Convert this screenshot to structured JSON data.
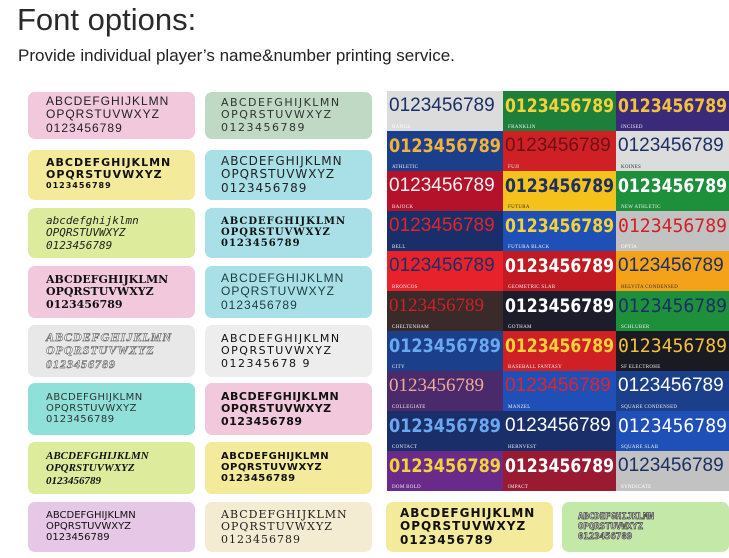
{
  "header": {
    "title": "Font options:",
    "subtitle": "Provide individual player’s name&number printing service."
  },
  "swatches": [
    {
      "bg": "#f2c8dc",
      "color": "#222",
      "lines": [
        "ABCDEFGHIJKLMN",
        "OPQRSTUVWXYZ",
        "0123456789"
      ],
      "font": "\"Liberation Sans\", sans-serif",
      "size": 12,
      "weight": "normal",
      "style": "normal",
      "tracking": 1,
      "stroke": ""
    },
    {
      "bg": "#bfd9c4",
      "color": "#333",
      "lines": [
        "ABCDEFGHIJKLMN",
        "OPQRSTUVWXYZ",
        "0123456789"
      ],
      "font": "\"DejaVu Sans\", sans-serif",
      "size": 11,
      "weight": "normal",
      "style": "normal",
      "tracking": 1.5,
      "stroke": ""
    },
    {
      "bg": "#f4ea9c",
      "color": "#111",
      "lines": [
        "ABCDEFGHIJKLMN",
        "OPQRSTUVWXYZ",
        "0123456789"
      ],
      "font": "\"DejaVu Sans\", sans-serif",
      "size": 11,
      "weight": "bold",
      "style": "normal",
      "tracking": 1,
      "stroke": "",
      "small_last": true
    },
    {
      "bg": "#a9e0e8",
      "color": "#222",
      "lines": [
        "ABCDEFGHIJKLMN",
        "OPQRSTUVWXYZ",
        "0123456789"
      ],
      "font": "\"DejaVu Sans\", sans-serif",
      "size": 12,
      "weight": "normal",
      "style": "normal",
      "tracking": 1,
      "stroke": ""
    },
    {
      "bg": "#dcec9c",
      "color": "#222",
      "lines": [
        "abcdefghijklmn",
        "OPQRSTUVWXYZ",
        "0123456789"
      ],
      "font": "\"DejaVu Sans Mono\", monospace",
      "size": 11,
      "weight": "normal",
      "style": "italic",
      "tracking": 0,
      "stroke": ""
    },
    {
      "bg": "#a9e0e8",
      "color": "#111",
      "lines": [
        "ABCDEFGHIJKLMN",
        "OPQRSTUVWXYZ",
        "0123456789"
      ],
      "font": "\"DejaVu Serif\", serif",
      "size": 10,
      "weight": "bold",
      "style": "normal",
      "tracking": 1,
      "stroke": ""
    },
    {
      "bg": "#f2c8dc",
      "color": "#111",
      "lines": [
        "ABCDEFGHIJKLMN",
        "OPQRSTUVWXYZ",
        "0123456789"
      ],
      "font": "\"DejaVu Serif\", serif",
      "size": 11,
      "weight": "bold",
      "style": "normal",
      "tracking": 0,
      "stroke": ""
    },
    {
      "bg": "#a9e0e8",
      "color": "#1d3c3c",
      "lines": [
        "ABCDEFGHIJKLMN",
        "OPQRSTUVWXYZ",
        "0123456789"
      ],
      "font": "\"Liberation Sans\", sans-serif",
      "size": 12,
      "weight": "normal",
      "style": "normal",
      "tracking": 1,
      "stroke": ""
    },
    {
      "bg": "#e8e8e8",
      "color": "#ffffff",
      "lines": [
        "ABCDEFGHIJKLMN",
        "OPQRSTUVWXYZ",
        "0123456789"
      ],
      "font": "\"Liberation Serif\", serif",
      "size": 12,
      "weight": "bold",
      "style": "italic",
      "tracking": 1,
      "stroke": "#777"
    },
    {
      "bg": "#ededed",
      "color": "#111",
      "lines": [
        "ABCDEFGHIJKLMN",
        "OPQRSTUVWXYZ",
        "012345678 9"
      ],
      "font": "\"DejaVu Sans\", sans-serif",
      "size": 11,
      "weight": "normal",
      "style": "normal",
      "tracking": 1.5,
      "stroke": ""
    },
    {
      "bg": "#8fe0d8",
      "color": "#333",
      "lines": [
        "ABCDEFGHIJKLMN",
        "OPQRSTUVWXYZ",
        "0123456789"
      ],
      "font": "\"DejaVu Sans\", sans-serif",
      "size": 10,
      "weight": "normal",
      "style": "normal",
      "tracking": 0.5,
      "stroke": ""
    },
    {
      "bg": "#f2c8dc",
      "color": "#111",
      "lines": [
        "ABCDEFGHIJKLMN",
        "OPQRSTUVWXYZ",
        "0123456789"
      ],
      "font": "\"DejaVu Sans\", sans-serif",
      "size": 11,
      "weight": "bold",
      "style": "normal",
      "tracking": 0.5,
      "stroke": ""
    },
    {
      "bg": "#dcec9c",
      "color": "#111",
      "lines": [
        "ABCDEFGHIJKLMN",
        "OPQRSTUVWXYZ",
        "0123456789"
      ],
      "font": "\"Liberation Serif\", serif",
      "size": 11,
      "weight": "bold",
      "style": "italic",
      "tracking": 0,
      "stroke": ""
    },
    {
      "bg": "#f4ea9c",
      "color": "#111",
      "lines": [
        "ABCDEFGHIJKLMN",
        "OPQRSTUVWXYZ",
        "0123456789"
      ],
      "font": "\"DejaVu Sans\", sans-serif",
      "size": 10,
      "weight": "bold",
      "style": "normal",
      "tracking": 0.5,
      "stroke": ""
    },
    {
      "bg": "#e6c8e6",
      "color": "#111",
      "lines": [
        "ABCDEFGHIJKLMN",
        "OPQRSTUVWXYZ",
        "0123456789"
      ],
      "font": "\"DejaVu Sans\", sans-serif",
      "size": 10,
      "weight": "normal",
      "style": "normal",
      "tracking": 0,
      "stroke": ""
    },
    {
      "bg": "#f4ecd2",
      "color": "#222",
      "lines": [
        "ABCDEFGHIJKLMN",
        "OPQRSTUVWXYZ",
        "0123456789"
      ],
      "font": "\"DejaVu Serif\", serif",
      "size": 11,
      "weight": "normal",
      "style": "normal",
      "tracking": 1,
      "stroke": ""
    },
    {
      "bg": "#f4ea9c",
      "color": "#111",
      "lines": [
        "ABCDEFGHIJKLMN",
        "OPQRSTUVWXYZ",
        "0123456789"
      ],
      "font": "\"DejaVu Sans\", sans-serif",
      "size": 12,
      "weight": "bold",
      "style": "normal",
      "tracking": 1,
      "stroke": ""
    },
    {
      "bg": "#c4e8a8",
      "color": "#ffffff",
      "lines": [
        "ABCDEFGHIJKLMN",
        "OPQRSTUVWXYZ",
        "0123456789"
      ],
      "font": "\"DejaVu Sans Mono\", monospace",
      "size": 9,
      "weight": "bold",
      "style": "normal",
      "tracking": 0,
      "stroke": "#444"
    }
  ],
  "number_grid": {
    "number": "0123456789",
    "cells": [
      {
        "bg": "#dcdcdc",
        "color": "#1b2f66",
        "name": "BANGS",
        "font": "\"Liberation Sans\", sans-serif",
        "weight": "normal",
        "style": "normal",
        "name_color": "#fff"
      },
      {
        "bg": "#1e7f3a",
        "color": "#f4d23a",
        "name": "FRANKLIN",
        "font": "\"DejaVu Sans\", sans-serif",
        "weight": "bold",
        "style": "normal",
        "name_color": "#eee"
      },
      {
        "bg": "#3b2a7a",
        "color": "#f4c23a",
        "name": "INCISED",
        "font": "\"DejaVu Sans\", sans-serif",
        "weight": "bold",
        "style": "normal",
        "name_color": "#eee"
      },
      {
        "bg": "#1b3f8a",
        "color": "#f4b23a",
        "name": "ATHLETIC",
        "font": "\"DejaVu Sans\", sans-serif",
        "weight": "bold",
        "style": "normal",
        "name_color": "#eee"
      },
      {
        "bg": "#cf2026",
        "color": "#6b1216",
        "name": "FUJI",
        "font": "\"Liberation Sans\", sans-serif",
        "weight": "normal",
        "style": "normal",
        "name_color": "#eee"
      },
      {
        "bg": "#dcdcdc",
        "color": "#1b2f66",
        "name": "KOINES",
        "font": "\"Liberation Sans\", sans-serif",
        "weight": "normal",
        "style": "normal",
        "name_color": "#333"
      },
      {
        "bg": "#b3122a",
        "color": "#f2f2f2",
        "name": "BAJOCK",
        "font": "\"Liberation Sans\", sans-serif",
        "weight": "normal",
        "style": "normal",
        "name_color": "#eee"
      },
      {
        "bg": "#f4c21a",
        "color": "#1b2f66",
        "name": "FUTURA",
        "font": "\"DejaVu Sans\", sans-serif",
        "weight": "bold",
        "style": "normal",
        "name_color": "#333"
      },
      {
        "bg": "#1e8f3a",
        "color": "#ffffff",
        "name": "NEW ATHLETIC",
        "font": "\"DejaVu Sans\", sans-serif",
        "weight": "bold",
        "style": "normal",
        "name_color": "#eee"
      },
      {
        "bg": "#1a2f6a",
        "color": "#e2232b",
        "name": "BELL",
        "font": "\"Liberation Sans\", sans-serif",
        "weight": "normal",
        "style": "normal",
        "name_color": "#eee"
      },
      {
        "bg": "#1e50b8",
        "color": "#f4d23a",
        "name": "FUTURA BLACK",
        "font": "\"DejaVu Sans\", sans-serif",
        "weight": "bold",
        "style": "normal",
        "name_color": "#eee"
      },
      {
        "bg": "#c2c2c2",
        "color": "#cf2026",
        "name": "OPTIA",
        "font": "\"DejaVu Sans Mono\", monospace",
        "weight": "normal",
        "style": "normal",
        "name_color": "#fff"
      },
      {
        "bg": "#e8222a",
        "color": "#1b2f66",
        "name": "BRONCOS",
        "font": "\"Liberation Sans\", sans-serif",
        "weight": "normal",
        "style": "normal",
        "name_color": "#eee"
      },
      {
        "bg": "#c21a22",
        "color": "#ffffff",
        "name": "GEOMETRIC SLAB",
        "font": "\"DejaVu Sans\", sans-serif",
        "weight": "bold",
        "style": "normal",
        "name_color": "#eee"
      },
      {
        "bg": "#f4a21a",
        "color": "#1b2f66",
        "name": "HELVITA CONDENSED",
        "font": "\"Liberation Sans\", sans-serif",
        "weight": "normal",
        "style": "normal",
        "name_color": "#333"
      },
      {
        "bg": "#3a2a2a",
        "color": "#cf2026",
        "name": "CHELTENHAM",
        "font": "\"Liberation Serif\", serif",
        "weight": "normal",
        "style": "normal",
        "name_color": "#eee"
      },
      {
        "bg": "#1c1c2a",
        "color": "#ffffff",
        "name": "GOTHAM",
        "font": "\"DejaVu Sans\", sans-serif",
        "weight": "bold",
        "style": "normal",
        "name_color": "#eee"
      },
      {
        "bg": "#1e8f3a",
        "color": "#1b2f66",
        "name": "SCHLUBER",
        "font": "\"DejaVu Sans\", sans-serif",
        "weight": "normal",
        "style": "normal",
        "name_color": "#eee"
      },
      {
        "bg": "#1b3f8a",
        "color": "#6aa8f0",
        "name": "CITY",
        "font": "\"DejaVu Sans\", sans-serif",
        "weight": "bold",
        "style": "normal",
        "name_color": "#eee"
      },
      {
        "bg": "#cf2026",
        "color": "#f4d23a",
        "name": "BASEBALL FANTASY",
        "font": "\"DejaVu Sans\", sans-serif",
        "weight": "bold",
        "style": "normal",
        "name_color": "#eee"
      },
      {
        "bg": "#1a1a22",
        "color": "#f4c23a",
        "name": "SF ELECTROHE",
        "font": "\"DejaVu Sans Mono\", monospace",
        "weight": "normal",
        "style": "normal",
        "name_color": "#eee"
      },
      {
        "bg": "#4a2a6a",
        "color": "#f0a89a",
        "name": "COLLEGIATE",
        "font": "\"Liberation Serif\", serif",
        "weight": "normal",
        "style": "normal",
        "name_color": "#eee"
      },
      {
        "bg": "#1e50b8",
        "color": "#e2232b",
        "name": "MANZEL",
        "font": "\"Liberation Sans\", sans-serif",
        "weight": "normal",
        "style": "normal",
        "name_color": "#eee"
      },
      {
        "bg": "#1b3f8a",
        "color": "#ffffff",
        "name": "SQUARE CONDENSED",
        "font": "\"Liberation Sans\", sans-serif",
        "weight": "normal",
        "style": "normal",
        "name_color": "#eee"
      },
      {
        "bg": "#1a2f6a",
        "color": "#6aa8f0",
        "name": "CONTACT",
        "font": "\"DejaVu Sans\", sans-serif",
        "weight": "bold",
        "style": "normal",
        "name_color": "#eee"
      },
      {
        "bg": "#1a2f6a",
        "color": "#ffffff",
        "name": "HERNVEST",
        "font": "\"Liberation Sans\", sans-serif",
        "weight": "normal",
        "style": "normal",
        "name_color": "#eee"
      },
      {
        "bg": "#1e50b8",
        "color": "#ffffff",
        "name": "SQUARE SLAB",
        "font": "\"DejaVu Sans\", sans-serif",
        "weight": "normal",
        "style": "normal",
        "name_color": "#eee"
      },
      {
        "bg": "#6a2a8a",
        "color": "#f4d23a",
        "name": "DOM BOLD",
        "font": "\"DejaVu Sans\", sans-serif",
        "weight": "bold",
        "style": "normal",
        "name_color": "#eee"
      },
      {
        "bg": "#9a1a32",
        "color": "#ffffff",
        "name": "IMPACT",
        "font": "\"DejaVu Sans\", sans-serif",
        "weight": "bold",
        "style": "normal",
        "name_color": "#eee"
      },
      {
        "bg": "#c2c2c2",
        "color": "#1b2f66",
        "name": "SYNDICATE",
        "font": "\"Liberation Sans\", sans-serif",
        "weight": "normal",
        "style": "normal",
        "name_color": "#fff"
      }
    ]
  }
}
